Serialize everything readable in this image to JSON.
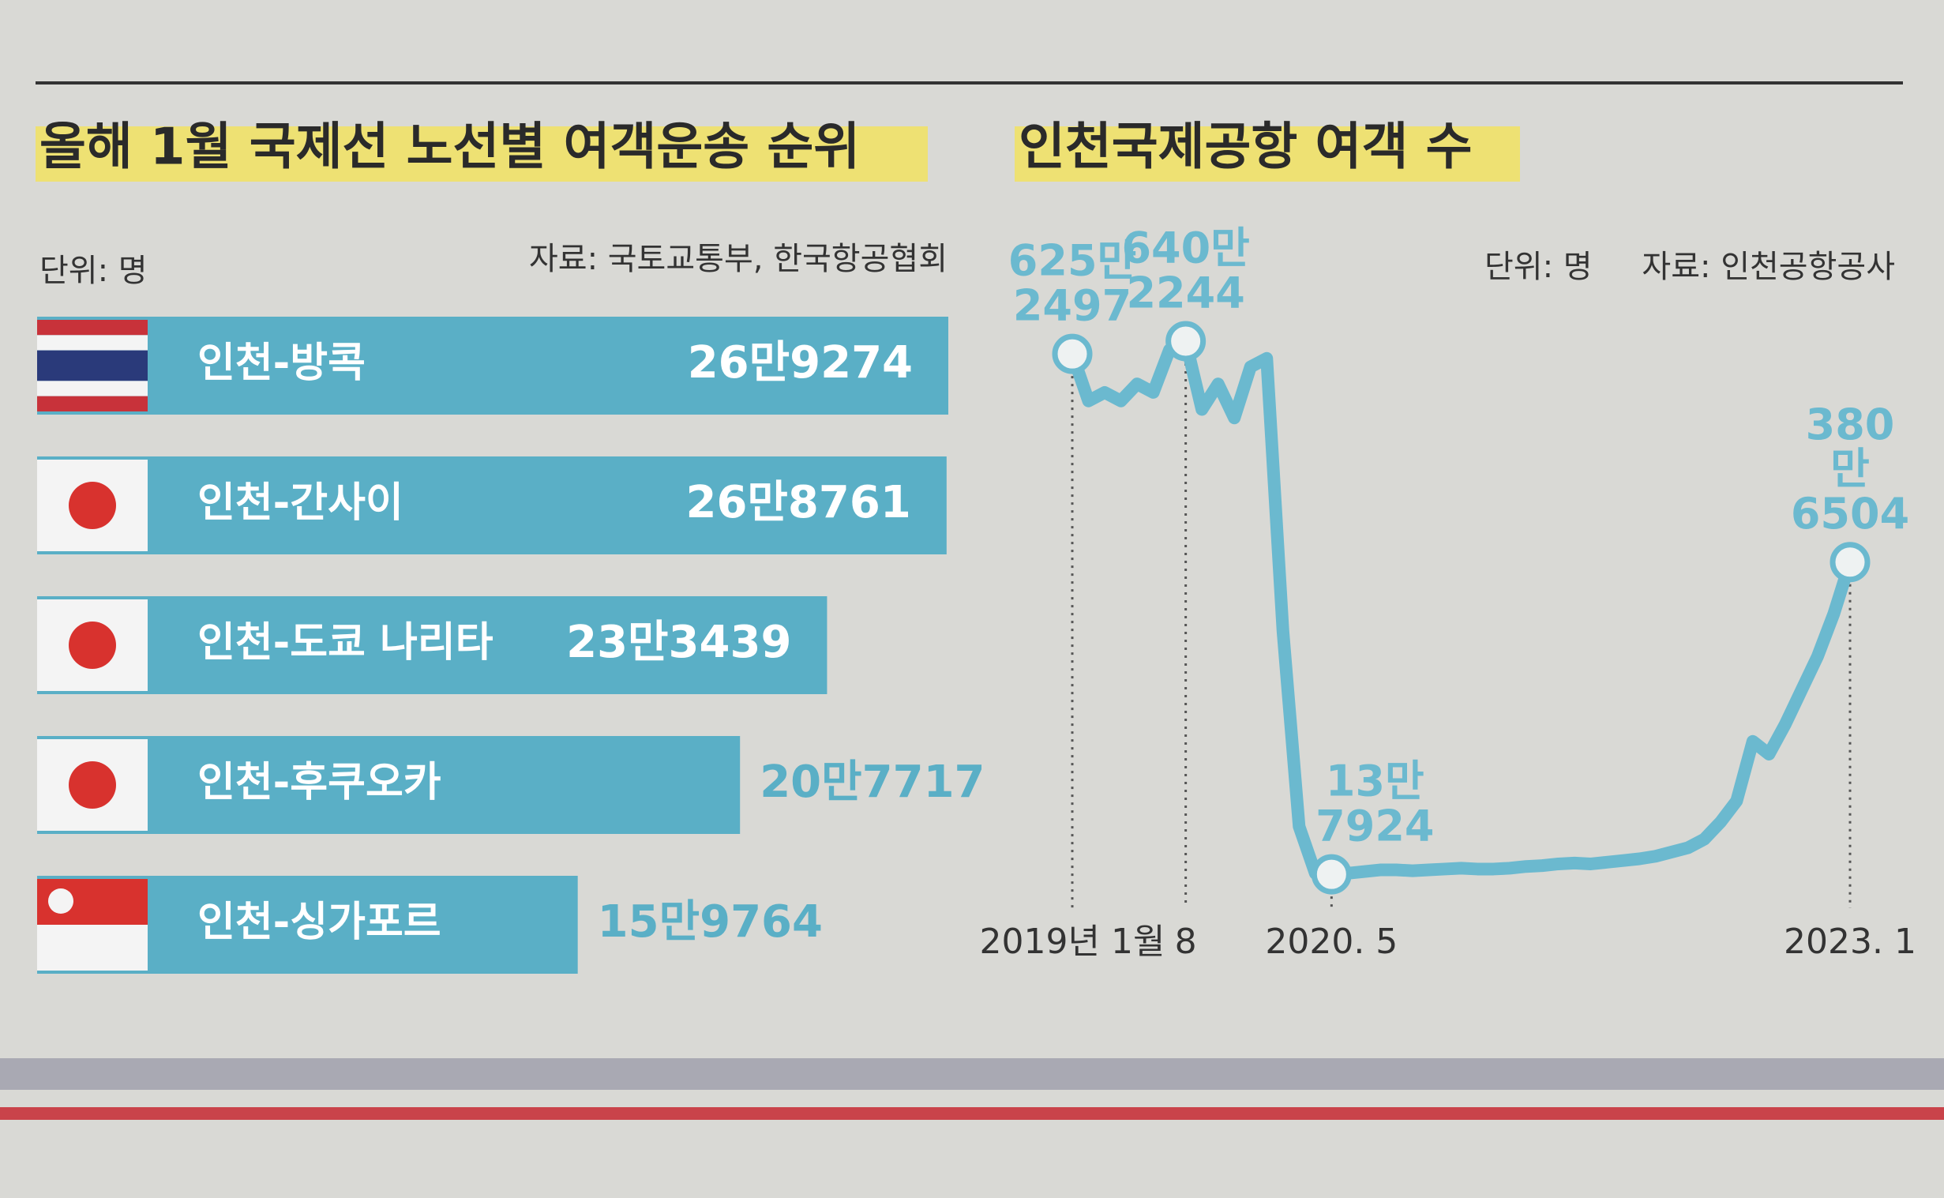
{
  "chart_data": [
    {
      "type": "bar",
      "title": "올해 1월 국제선 노선별 여객운송 순위",
      "unit": "단위: 명",
      "source": "자료: 국토교통부, 한국항공협회",
      "categories": [
        "인천-방콕",
        "인천-간사이",
        "인천-도쿄 나리타",
        "인천-후쿠오카",
        "인천-싱가포르"
      ],
      "values": [
        269274,
        268761,
        233439,
        207717,
        159764
      ],
      "value_labels": [
        "26만9274",
        "26만8761",
        "23만3439",
        "20만7717",
        "15만9764"
      ],
      "color": "#5aafc6"
    },
    {
      "type": "line",
      "title": "인천국제공항 여객 수",
      "unit": "단위: 명",
      "source": "자료: 인천공항공사",
      "categories": [
        "2019년 1월",
        null,
        null,
        null,
        null,
        null,
        null,
        "8",
        null,
        null,
        null,
        null,
        null,
        null,
        null,
        null,
        "2020. 5",
        null,
        null,
        null,
        null,
        null,
        null,
        null,
        null,
        null,
        null,
        null,
        null,
        null,
        null,
        null,
        null,
        null,
        null,
        null,
        null,
        null,
        null,
        null,
        null,
        null,
        null,
        null,
        null,
        null,
        null,
        null,
        "2023. 1"
      ],
      "values": [
        6252497,
        5700000,
        5800000,
        5700000,
        5900000,
        5800000,
        6300000,
        6402244,
        5600000,
        5900000,
        5500000,
        6100000,
        6200000,
        3000000,
        700000,
        150000,
        137924,
        150000,
        170000,
        190000,
        190000,
        180000,
        190000,
        200000,
        210000,
        200000,
        200000,
        210000,
        230000,
        240000,
        260000,
        270000,
        260000,
        280000,
        300000,
        320000,
        350000,
        400000,
        450000,
        550000,
        750000,
        1000000,
        1700000,
        1550000,
        1900000,
        2300000,
        2700000,
        3200000,
        3806504
      ],
      "value_labels": [
        "625만\n2497",
        null,
        null,
        null,
        null,
        null,
        null,
        "640만\n2244",
        null,
        null,
        null,
        null,
        null,
        null,
        null,
        null,
        "13만\n7924",
        null,
        null,
        null,
        null,
        null,
        null,
        null,
        null,
        null,
        null,
        null,
        null,
        null,
        null,
        null,
        null,
        null,
        null,
        null,
        null,
        null,
        null,
        null,
        null,
        null,
        null,
        null,
        null,
        null,
        null,
        null,
        "380만\n6504"
      ],
      "color": "#6bb9cf"
    }
  ]
}
